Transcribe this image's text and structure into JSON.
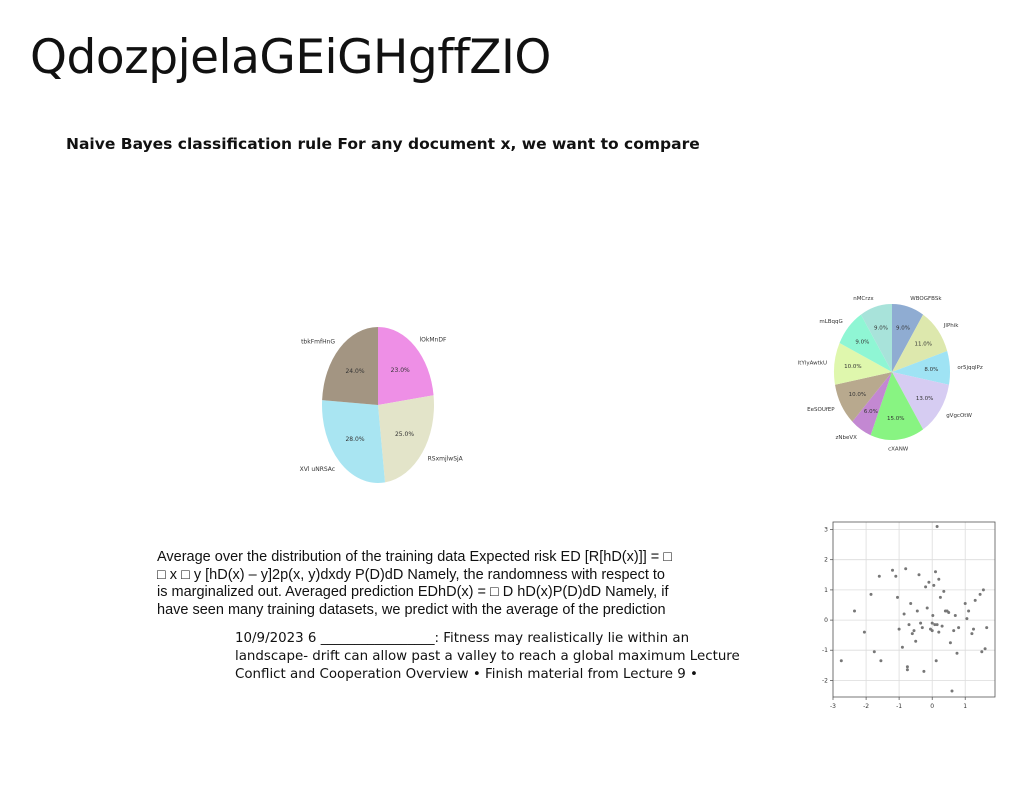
{
  "slide": {
    "title": "QdozpjelaGEiGHgffZIO",
    "subtitle": "Naive Bayes classification rule For any document x, we want to compare",
    "paragraph1": "Average over the distribution of the training data Expected risk ED [R[hD(x)]] = □\n□ x □ y [hD(x) – y]2p(x, y)dxdy P(D)dD Namely, the randomness with respect to\nis marginalized out. Averaged prediction EDhD(x) = □ D hD(x)P(D)dD Namely, if\nhave seen many training datasets, we predict with the average of the prediction",
    "paragraph2": "10/9/2023 6 _________________: Fitness may realistically lie within an\nlandscape- drift can allow past a valley to reach a global maximum Lecture\nConflict and Cooperation Overview • Finish material from Lecture 9 •"
  },
  "chart_data": [
    {
      "type": "pie",
      "labels": [
        "lOkMnDF",
        "RSxmjlwSjA",
        "XVl uNRSAc",
        "tbkFmfHnG"
      ],
      "values": [
        23.0,
        25.0,
        28.0,
        24.0
      ],
      "value_labels": [
        "23.0%",
        "25.0%",
        "28.0%",
        "24.0%"
      ],
      "colors": [
        "#ee8fe6",
        "#e3e4c9",
        "#a9e5f2",
        "#a39582"
      ]
    },
    {
      "type": "pie",
      "labels": [
        "WBOGFBSk",
        "JlPhik",
        "or5jqqlPz",
        "gVgcOtW",
        "cXANW",
        "zNbeVX",
        "EeSOUfEP",
        "ltYlyAwtkU",
        "mLBqqG",
        "nMCrzx"
      ],
      "values": [
        9.0,
        11.0,
        8.0,
        13.0,
        15.0,
        6.0,
        10.0,
        10.0,
        9.0,
        9.0
      ],
      "value_labels": [
        "9.0%",
        "11.0%",
        "8.0%",
        "13.0%",
        "15.0%",
        "6.0%",
        "10.0%",
        "10.0%",
        "9.0%",
        "9.0%"
      ],
      "colors": [
        "#8facd2",
        "#dde8ad",
        "#9fe3f4",
        "#d6ccf2",
        "#88f482",
        "#c388d2",
        "#b8a98e",
        "#dff7ad",
        "#8ff6d4",
        "#a8e3da"
      ]
    },
    {
      "type": "scatter",
      "xlim": [
        -3,
        1.9
      ],
      "ylim": [
        -2.55,
        3.25
      ],
      "xticks": [
        "-3",
        "-2",
        "-1",
        "0",
        "1"
      ],
      "yticks": [
        "3",
        "2",
        "1",
        "0",
        "-1",
        "-2"
      ],
      "grid": true,
      "point_color": "#777777",
      "points": [
        [
          -2.75,
          -1.35
        ],
        [
          -2.35,
          0.3
        ],
        [
          -2.05,
          -0.4
        ],
        [
          -1.85,
          0.85
        ],
        [
          -1.75,
          -1.05
        ],
        [
          -1.6,
          1.45
        ],
        [
          -1.55,
          -1.35
        ],
        [
          -1.2,
          1.65
        ],
        [
          -1.1,
          1.45
        ],
        [
          -1.05,
          0.75
        ],
        [
          -1.0,
          -0.3
        ],
        [
          -0.9,
          -0.9
        ],
        [
          -0.85,
          0.2
        ],
        [
          -0.8,
          1.7
        ],
        [
          -0.75,
          -1.55
        ],
        [
          -0.75,
          -1.65
        ],
        [
          -0.7,
          -0.15
        ],
        [
          -0.65,
          0.55
        ],
        [
          -0.6,
          -0.45
        ],
        [
          -0.55,
          -0.35
        ],
        [
          -0.5,
          -0.7
        ],
        [
          -0.45,
          0.3
        ],
        [
          -0.4,
          1.5
        ],
        [
          -0.35,
          -0.1
        ],
        [
          -0.3,
          -0.25
        ],
        [
          -0.25,
          -1.7
        ],
        [
          -0.2,
          1.1
        ],
        [
          -0.15,
          0.4
        ],
        [
          -0.1,
          1.25
        ],
        [
          -0.05,
          -0.3
        ],
        [
          0.0,
          -0.1
        ],
        [
          0.0,
          -0.35
        ],
        [
          0.02,
          0.15
        ],
        [
          0.05,
          1.15
        ],
        [
          0.08,
          -0.15
        ],
        [
          0.1,
          1.6
        ],
        [
          0.12,
          -1.35
        ],
        [
          0.15,
          -0.15
        ],
        [
          0.2,
          -0.4
        ],
        [
          0.2,
          1.35
        ],
        [
          0.25,
          0.75
        ],
        [
          0.3,
          -0.2
        ],
        [
          0.35,
          0.95
        ],
        [
          0.4,
          0.3
        ],
        [
          0.45,
          0.3
        ],
        [
          0.5,
          0.25
        ],
        [
          0.55,
          -0.75
        ],
        [
          0.6,
          -2.35
        ],
        [
          0.65,
          -0.35
        ],
        [
          0.7,
          0.15
        ],
        [
          0.75,
          -1.1
        ],
        [
          0.8,
          -0.25
        ],
        [
          1.0,
          0.55
        ],
        [
          1.05,
          0.05
        ],
        [
          1.1,
          0.3
        ],
        [
          1.2,
          -0.45
        ],
        [
          1.25,
          -0.3
        ],
        [
          1.3,
          0.65
        ],
        [
          1.45,
          0.85
        ],
        [
          1.5,
          -1.05
        ],
        [
          1.55,
          1.0
        ],
        [
          1.6,
          -0.95
        ],
        [
          1.65,
          -0.25
        ],
        [
          0.15,
          3.1
        ]
      ]
    }
  ]
}
